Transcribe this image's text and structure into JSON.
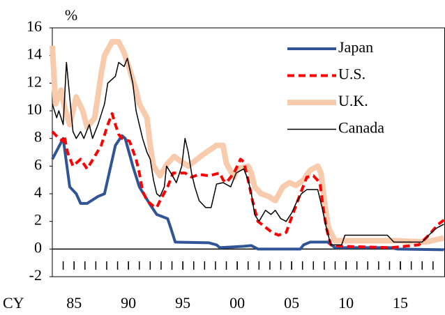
{
  "chart_data": {
    "type": "line",
    "ylabel": "%",
    "xlabel": "CY",
    "xlim": [
      1983,
      2019.1
    ],
    "ylim": [
      -2,
      16
    ],
    "yticks": [
      -2,
      0,
      2,
      4,
      6,
      8,
      10,
      12,
      14,
      16
    ],
    "xticks": [
      {
        "value": 1985,
        "label": "85"
      },
      {
        "value": 1990,
        "label": "90"
      },
      {
        "value": 1995,
        "label": "95"
      },
      {
        "value": 2000,
        "label": "00"
      },
      {
        "value": 2005,
        "label": "05"
      },
      {
        "value": 2010,
        "label": "10"
      },
      {
        "value": 2015,
        "label": "15"
      }
    ],
    "xminorticks": [
      1984,
      1985,
      1986,
      1987,
      1988,
      1989,
      1990,
      1991,
      1992,
      1993,
      1994,
      1995,
      1996,
      1997,
      1998,
      1999,
      2000,
      2001,
      2002,
      2003,
      2004,
      2005,
      2006,
      2007,
      2008,
      2009,
      2010,
      2011,
      2012,
      2013,
      2014,
      2015,
      2016,
      2017,
      2018
    ],
    "series": [
      {
        "name": "Japan",
        "color": "#2f5597",
        "width": 4,
        "dashed": false,
        "x": [
          1983.0,
          1984.0,
          1984.6,
          1985.2,
          1985.6,
          1986.2,
          1987.2,
          1987.8,
          1988.8,
          1989.4,
          1989.7,
          1990.4,
          1991.0,
          1992.0,
          1992.6,
          1993.6,
          1993.9,
          1994.3,
          1997.4,
          1998.1,
          1998.4,
          2000.6,
          2001.3,
          2001.9,
          2005.8,
          2006.1,
          2006.7,
          2008.3,
          2009.0,
          2014.1,
          2014.7,
          2019.0
        ],
        "values": [
          6.5,
          8,
          4.5,
          4,
          3.3,
          3.3,
          3.8,
          4,
          7.5,
          8.2,
          8,
          6,
          4.5,
          3.2,
          2.5,
          2.2,
          1.5,
          0.5,
          0.45,
          0.3,
          0.1,
          0.2,
          0.25,
          0,
          0,
          0.3,
          0.5,
          0.5,
          0.1,
          0.1,
          0,
          -0.05
        ]
      },
      {
        "name": "U.S.",
        "color": "#ff0000",
        "width": 4,
        "dashed": true,
        "x": [
          1983.0,
          1983.6,
          1984.0,
          1984.1,
          1984.4,
          1984.9,
          1985.6,
          1986.2,
          1986.9,
          1987.5,
          1988.1,
          1988.5,
          1988.8,
          1989.1,
          1989.4,
          1990.1,
          1990.7,
          1991.0,
          1991.3,
          1991.7,
          1992.3,
          1992.6,
          1992.9,
          1993.6,
          1994.1,
          1995.2,
          1995.8,
          1996.5,
          1997.4,
          1998.4,
          1998.7,
          1999.0,
          1999.7,
          2000.3,
          2000.6,
          2001.0,
          2001.4,
          2001.9,
          2002.4,
          2003.2,
          2003.8,
          2004.5,
          2005.1,
          2005.8,
          2006.4,
          2007.0,
          2007.6,
          2007.9,
          2008.2,
          2008.6,
          2009.6,
          2014.1,
          2016.7,
          2017.6,
          2018.5,
          2019.0
        ],
        "values": [
          8.5,
          8,
          7.8,
          8.2,
          7,
          6,
          6.5,
          5.8,
          6.7,
          7.5,
          9,
          9.8,
          9,
          8.3,
          8,
          7.8,
          6.5,
          5.5,
          4.2,
          3.5,
          3.1,
          3,
          3.5,
          4.5,
          5.5,
          5.5,
          5.2,
          5.4,
          5.3,
          5.5,
          5,
          4.8,
          5.5,
          6.5,
          6.3,
          5,
          3.5,
          2,
          1.7,
          1.2,
          1,
          1.2,
          2.5,
          4,
          5.2,
          5.3,
          4.8,
          3,
          1.5,
          0.3,
          0.2,
          0.1,
          0.3,
          1,
          1.8,
          2.1
        ]
      },
      {
        "name": "U.K.",
        "color": "#f8cbad",
        "width": 8,
        "dashed": false,
        "x": [
          1983.0,
          1983.3,
          1983.8,
          1984.2,
          1984.6,
          1985.2,
          1985.8,
          1986.2,
          1986.9,
          1987.5,
          1987.8,
          1988.5,
          1989.1,
          1989.6,
          1990.1,
          1990.7,
          1991.0,
          1991.7,
          1992.0,
          1992.3,
          1992.9,
          1993.6,
          1994.2,
          1994.9,
          1995.5,
          1996.8,
          1998.1,
          1998.7,
          1999.0,
          1999.7,
          2000.0,
          2001.0,
          2001.3,
          2001.6,
          2002.2,
          2002.9,
          2003.5,
          2004.2,
          2004.8,
          2005.4,
          2006.1,
          2006.7,
          2007.4,
          2007.7,
          2008.1,
          2008.4,
          2009.0,
          2011.5,
          2014.7,
          2017.3,
          2019.0
        ],
        "values": [
          14.7,
          10.5,
          11.5,
          10,
          9,
          11,
          10,
          8.8,
          9.5,
          12.7,
          14,
          15,
          15,
          14.2,
          13,
          11.5,
          10.5,
          9.5,
          7.5,
          6,
          5.3,
          6.2,
          6.7,
          6.3,
          6,
          6.8,
          7.5,
          7.5,
          6.2,
          5.2,
          5.8,
          6,
          5.5,
          4.5,
          4,
          3.8,
          3.5,
          4.5,
          4.8,
          4.6,
          5,
          5.7,
          6,
          5.5,
          3,
          1.5,
          0.6,
          0.6,
          0.6,
          0.5,
          0.8
        ]
      },
      {
        "name": "Canada",
        "color": "#000000",
        "width": 1.5,
        "dashed": false,
        "x": [
          1983.0,
          1983.4,
          1983.6,
          1984.0,
          1984.3,
          1984.6,
          1984.9,
          1985.2,
          1985.6,
          1985.9,
          1986.4,
          1986.7,
          1987.2,
          1987.8,
          1988.1,
          1988.8,
          1989.1,
          1989.6,
          1989.9,
          1990.4,
          1990.7,
          1991.0,
          1991.3,
          1991.7,
          1992.0,
          1992.3,
          1992.6,
          1992.9,
          1993.3,
          1993.5,
          1993.9,
          1994.4,
          1994.9,
          1995.2,
          1995.5,
          1995.8,
          1996.1,
          1996.5,
          1997.1,
          1997.6,
          1998.1,
          1998.7,
          1999.4,
          1999.9,
          2000.6,
          2001.0,
          2001.3,
          2001.6,
          2002.0,
          2002.6,
          2003.1,
          2003.5,
          2004.0,
          2004.5,
          2005.0,
          2005.4,
          2005.9,
          2006.4,
          2007.4,
          2007.8,
          2008.2,
          2008.6,
          2009.6,
          2009.9,
          2013.8,
          2014.4,
          2017.0,
          2017.6,
          2018.3,
          2019.0
        ],
        "values": [
          10.5,
          9.5,
          10,
          9,
          13.5,
          11,
          8.5,
          8,
          8.5,
          8,
          9,
          8,
          9,
          10.5,
          12,
          12.5,
          13.5,
          13.2,
          13.8,
          12,
          10,
          9,
          8,
          7,
          6.5,
          5,
          4,
          3.8,
          4.5,
          6,
          5.5,
          4.8,
          6,
          8,
          7,
          5.5,
          4.5,
          3.5,
          3,
          3,
          4.7,
          4.8,
          4.5,
          5.5,
          5.8,
          5,
          4,
          2.5,
          2,
          2.8,
          2.5,
          2.8,
          2.2,
          2,
          2.6,
          3.3,
          4,
          4.3,
          4.3,
          3,
          1.5,
          0.3,
          0.3,
          1,
          1,
          0.5,
          0.5,
          1,
          1.5,
          1.8
        ]
      }
    ]
  }
}
